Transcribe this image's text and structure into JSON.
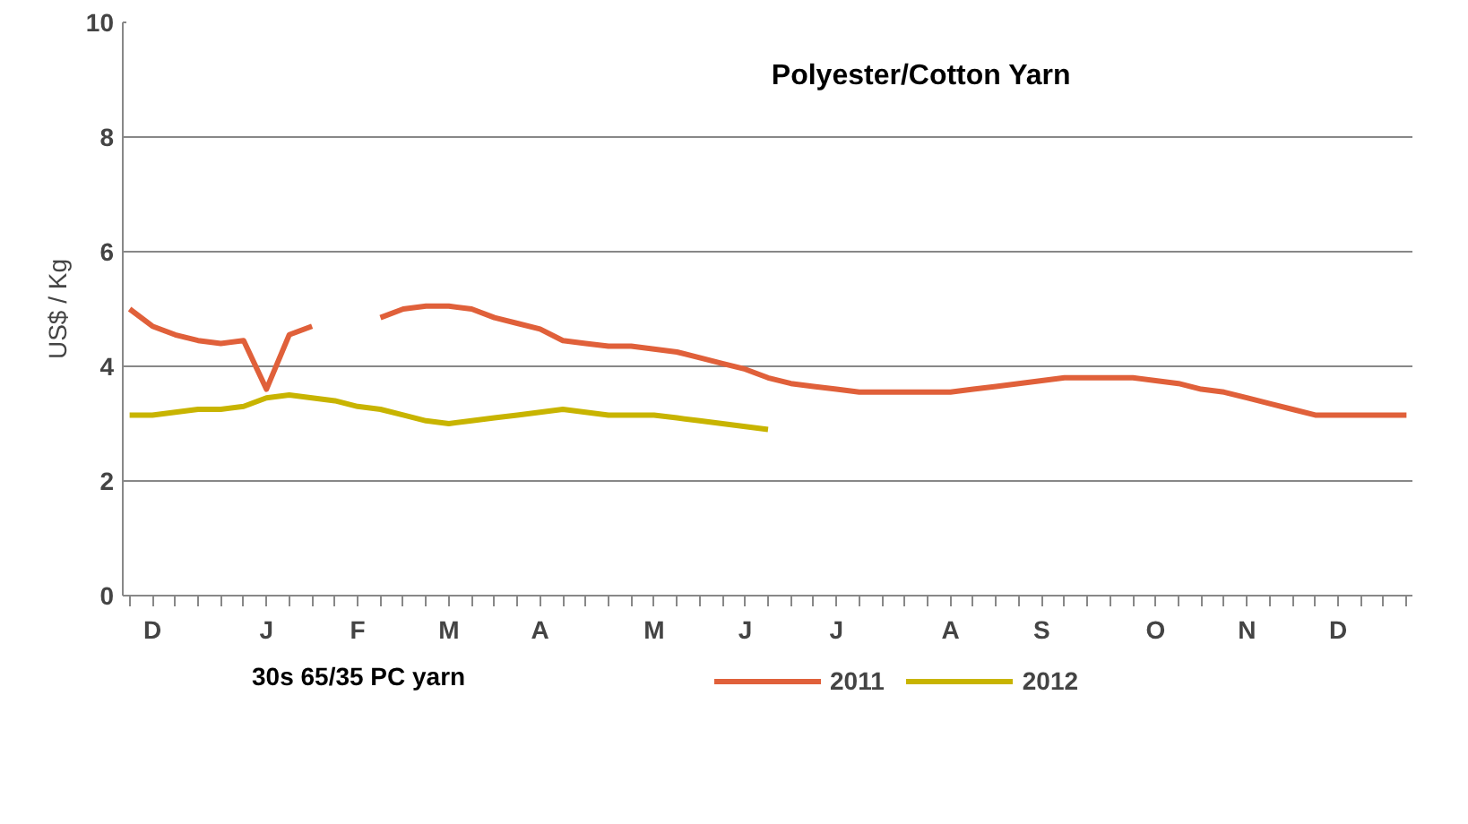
{
  "chart_data": {
    "type": "line",
    "title": "Polyester/Cotton Yarn",
    "ylabel": "US$ / Kg",
    "legend_title": "30s 65/35 PC yarn",
    "categories": [
      null,
      "D",
      null,
      null,
      null,
      null,
      "J",
      null,
      null,
      null,
      "F",
      null,
      null,
      null,
      "M",
      null,
      null,
      null,
      "A",
      null,
      null,
      null,
      null,
      "M",
      null,
      null,
      null,
      "J",
      null,
      null,
      null,
      "J",
      null,
      null,
      null,
      null,
      "A",
      null,
      null,
      null,
      "S",
      null,
      null,
      null,
      null,
      "O",
      null,
      null,
      null,
      "N",
      null,
      null,
      null,
      "D",
      null,
      null,
      null
    ],
    "ylim": [
      0,
      10
    ],
    "yticks": [
      0,
      2,
      4,
      6,
      8,
      10
    ],
    "grid": "y",
    "legend": "bottom",
    "series": [
      {
        "name": "2011",
        "color": "#e0603a",
        "values": [
          5.0,
          4.7,
          4.55,
          4.45,
          4.4,
          4.45,
          3.6,
          4.55,
          4.7,
          null,
          null,
          4.85,
          5.0,
          5.05,
          5.05,
          5.0,
          4.85,
          4.75,
          4.65,
          4.45,
          4.4,
          4.35,
          4.35,
          4.3,
          4.25,
          4.15,
          4.05,
          3.95,
          3.8,
          3.7,
          3.65,
          3.6,
          3.55,
          3.55,
          3.55,
          3.55,
          3.55,
          3.6,
          3.65,
          3.7,
          3.75,
          3.8,
          3.8,
          3.8,
          3.8,
          3.75,
          3.7,
          3.6,
          3.55,
          3.45,
          3.35,
          3.25,
          3.15,
          3.15,
          3.15,
          3.15,
          3.15
        ]
      },
      {
        "name": "2012",
        "color": "#c8b400",
        "values": [
          3.15,
          3.15,
          3.2,
          3.25,
          3.25,
          3.3,
          3.45,
          3.5,
          3.45,
          3.4,
          3.3,
          3.25,
          3.15,
          3.05,
          3.0,
          3.05,
          3.1,
          3.15,
          3.2,
          3.25,
          3.2,
          3.15,
          3.15,
          3.15,
          3.1,
          3.05,
          3.0,
          2.95,
          2.9,
          null,
          null,
          null,
          null,
          null,
          null,
          null,
          null,
          null,
          null,
          null,
          null,
          null,
          null,
          null,
          null,
          null,
          null,
          null,
          null,
          null,
          null,
          null,
          null,
          null,
          null,
          null,
          null
        ]
      }
    ]
  }
}
